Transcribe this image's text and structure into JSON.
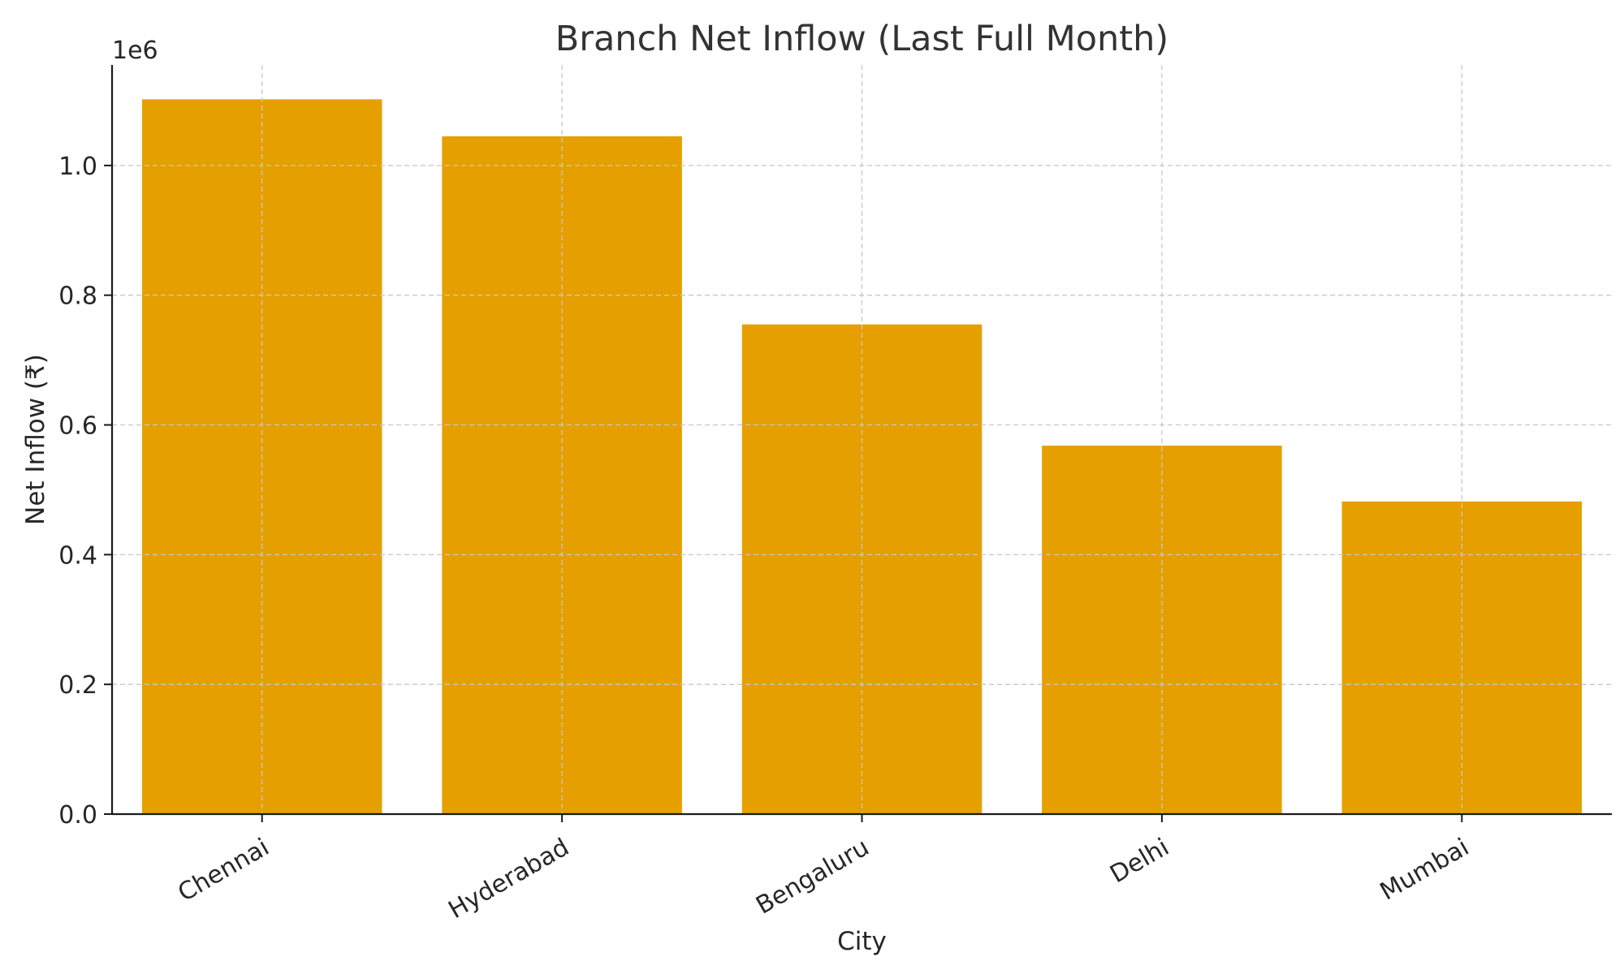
{
  "chart_data": {
    "type": "bar",
    "title": "Branch Net Inflow (Last Full Month)",
    "xlabel": "City",
    "ylabel": "Net Inflow (₹)",
    "y_offset_label": "1e6",
    "categories": [
      "Chennai",
      "Hyderabad",
      "Bengaluru",
      "Delhi",
      "Mumbai"
    ],
    "values": [
      1102000,
      1045000,
      755000,
      568000,
      482000
    ],
    "ylim": [
      0,
      1155000
    ],
    "yticks": [
      0,
      200000,
      400000,
      600000,
      800000,
      1000000
    ],
    "ytick_labels": [
      "0.0",
      "0.2",
      "0.4",
      "0.6",
      "0.8",
      "1.0"
    ],
    "grid": true,
    "colors": {
      "bar": "#E5A000"
    }
  }
}
